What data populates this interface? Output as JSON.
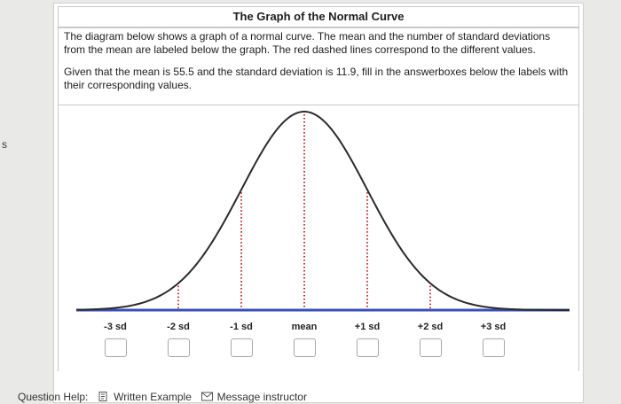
{
  "left_marker": "s",
  "title": "The Graph of the Normal Curve",
  "description": {
    "paragraph1": "The diagram below shows a graph of a normal curve. The mean and the number of standard deviations from the mean are labeled below the graph. The red dashed lines correspond to the different values.",
    "paragraph2": "Given that the mean is 55.5 and the standard deviation is 11.9, fill in the answerboxes below the labels with their corresponding values."
  },
  "graph": {
    "labels": [
      "-3 sd",
      "-2 sd",
      "-1 sd",
      "mean",
      "+1 sd",
      "+2 sd",
      "+3 sd"
    ],
    "answers": [
      "",
      "",
      "",
      "",
      "",
      "",
      ""
    ],
    "colors": {
      "curve": "#2b2b2b",
      "axis": "#3a4fb4",
      "dashed_lines": "#c1312f"
    }
  },
  "help": {
    "label": "Question Help:",
    "written_example": "Written Example",
    "message_instructor": "Message instructor",
    "icons": [
      "document-icon",
      "mail-icon"
    ]
  }
}
